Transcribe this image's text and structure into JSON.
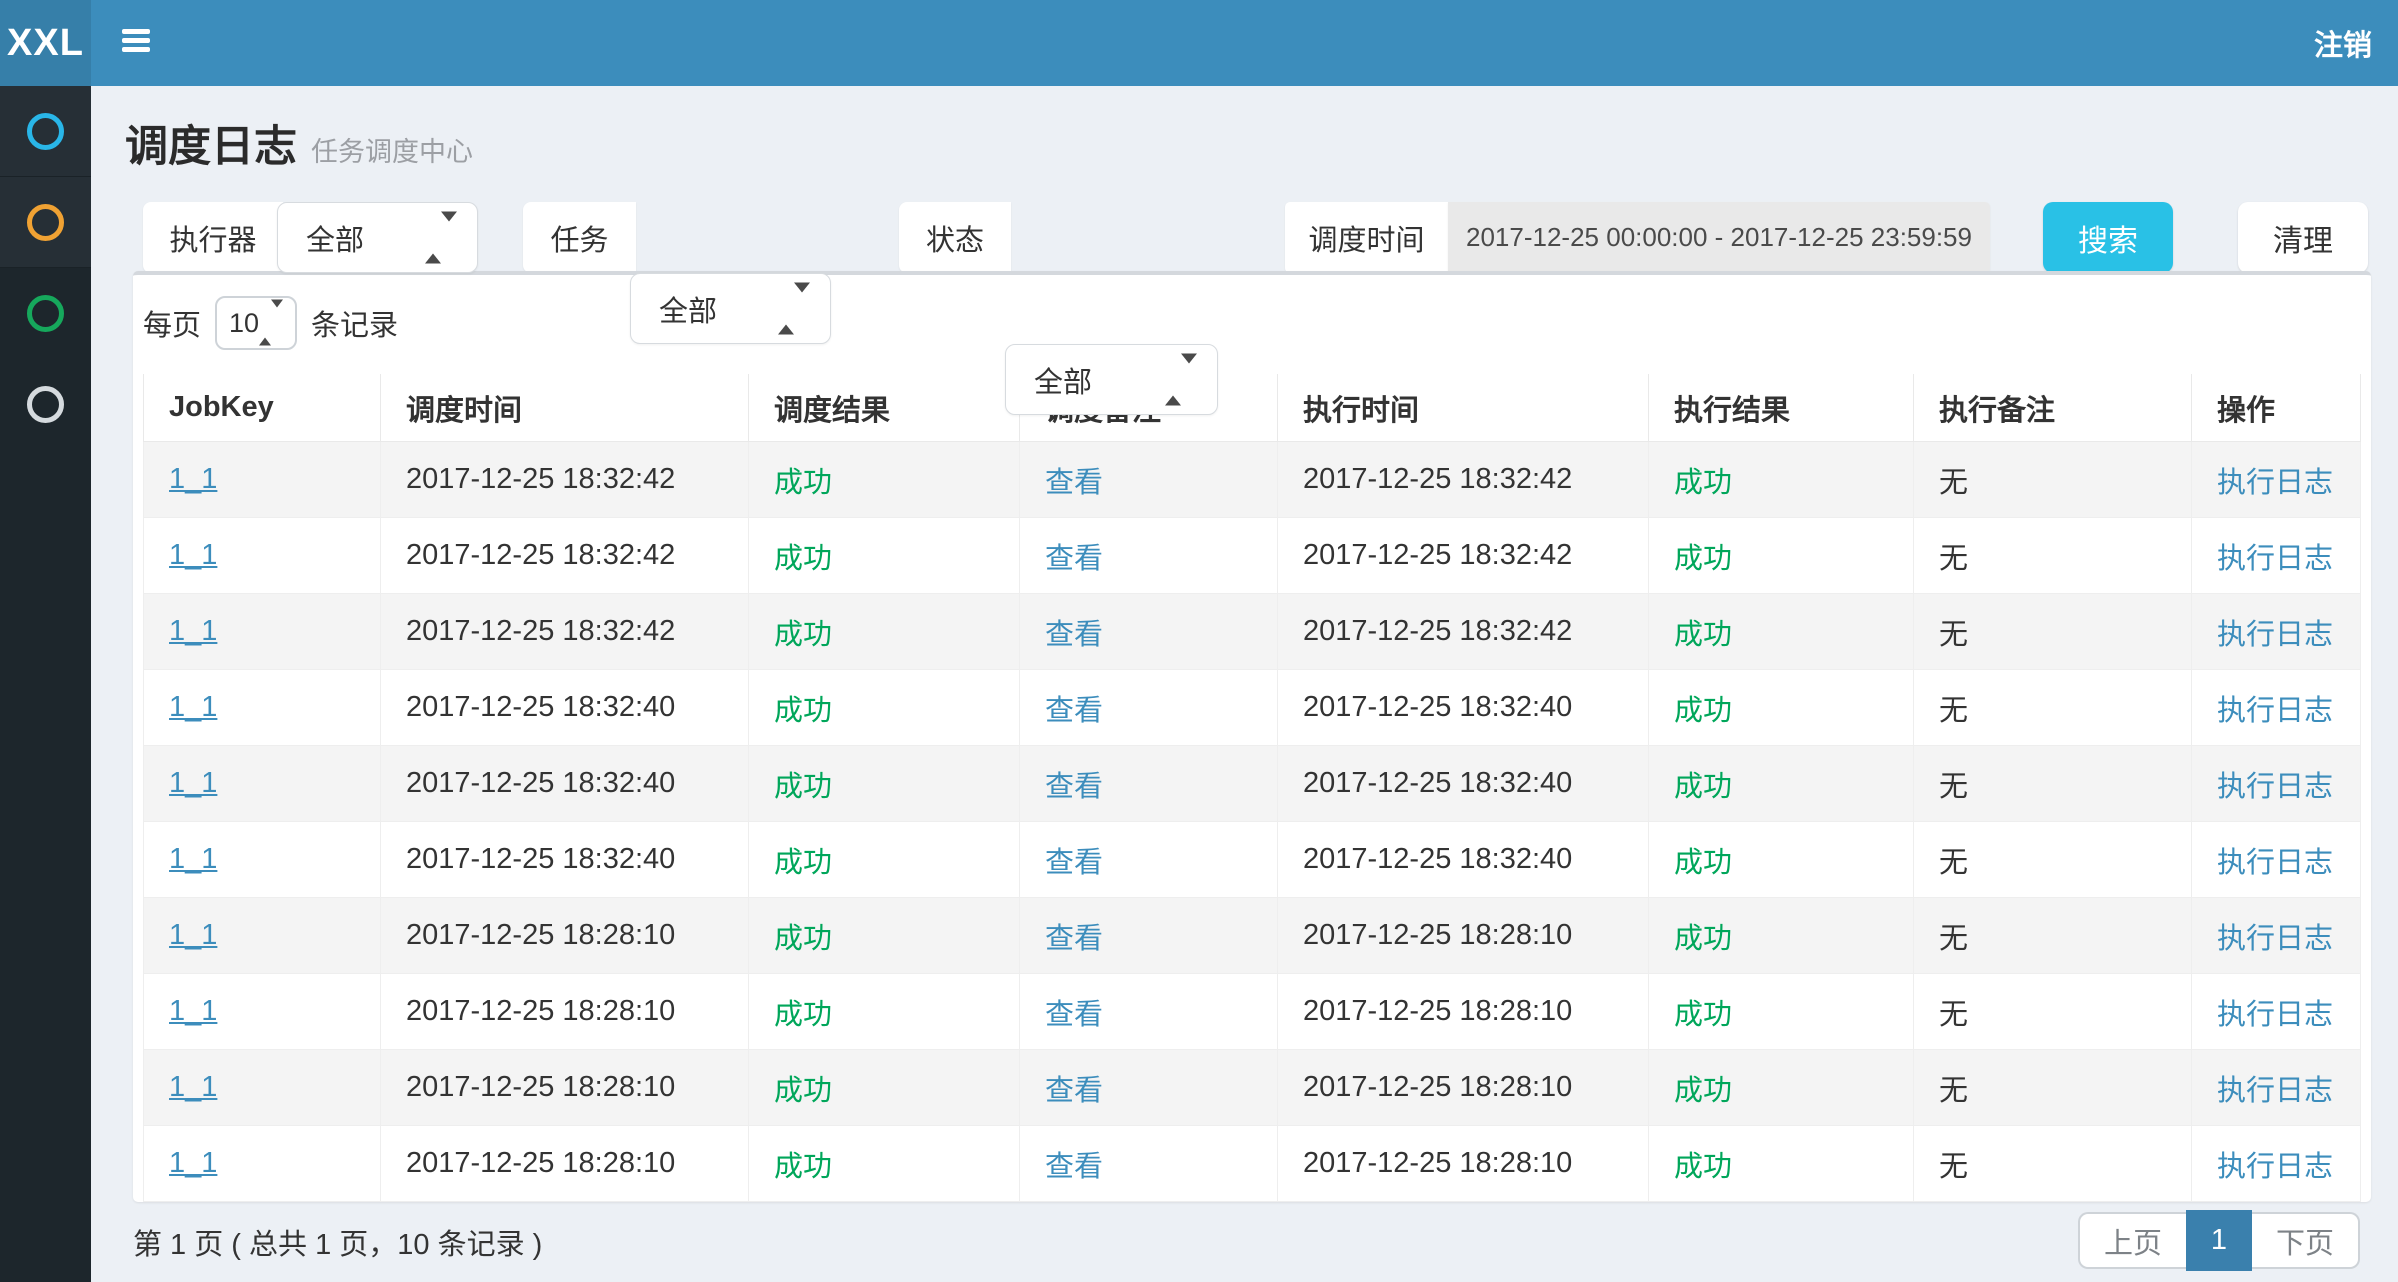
{
  "navbar": {
    "logo": "XXL",
    "logout": "注销"
  },
  "sidebar": {
    "items": [
      {
        "icon": "circle-icon",
        "color": "#29b6e8",
        "highlighted": true
      },
      {
        "icon": "circle-icon",
        "color": "#f0a233",
        "highlighted": true
      },
      {
        "icon": "circle-icon",
        "color": "#16a85c",
        "highlighted": false
      },
      {
        "icon": "circle-icon",
        "color": "#d5dade",
        "highlighted": false
      }
    ]
  },
  "page": {
    "title": "调度日志",
    "subtitle": "任务调度中心"
  },
  "filters": {
    "executor_label": "执行器",
    "executor_value": "全部",
    "job_label": "任务",
    "job_value": "全部",
    "status_label": "状态",
    "status_value": "全部",
    "time_label": "调度时间",
    "time_value": "2017-12-25 00:00:00 - 2017-12-25 23:59:59",
    "search_label": "搜索",
    "clear_label": "清理"
  },
  "per_page": {
    "prefix": "每页",
    "value": "10",
    "suffix": "条记录"
  },
  "table": {
    "columns": [
      "JobKey",
      "调度时间",
      "调度结果",
      "调度备注",
      "执行时间",
      "执行结果",
      "执行备注",
      "操作"
    ],
    "rows": [
      {
        "job_key": "1_1",
        "trigger_time": "2017-12-25 18:32:42",
        "trigger_result": "成功",
        "trigger_msg": "查看",
        "handle_time": "2017-12-25 18:32:42",
        "handle_result": "成功",
        "handle_msg": "无",
        "action": "执行日志"
      },
      {
        "job_key": "1_1",
        "trigger_time": "2017-12-25 18:32:42",
        "trigger_result": "成功",
        "trigger_msg": "查看",
        "handle_time": "2017-12-25 18:32:42",
        "handle_result": "成功",
        "handle_msg": "无",
        "action": "执行日志"
      },
      {
        "job_key": "1_1",
        "trigger_time": "2017-12-25 18:32:42",
        "trigger_result": "成功",
        "trigger_msg": "查看",
        "handle_time": "2017-12-25 18:32:42",
        "handle_result": "成功",
        "handle_msg": "无",
        "action": "执行日志"
      },
      {
        "job_key": "1_1",
        "trigger_time": "2017-12-25 18:32:40",
        "trigger_result": "成功",
        "trigger_msg": "查看",
        "handle_time": "2017-12-25 18:32:40",
        "handle_result": "成功",
        "handle_msg": "无",
        "action": "执行日志"
      },
      {
        "job_key": "1_1",
        "trigger_time": "2017-12-25 18:32:40",
        "trigger_result": "成功",
        "trigger_msg": "查看",
        "handle_time": "2017-12-25 18:32:40",
        "handle_result": "成功",
        "handle_msg": "无",
        "action": "执行日志"
      },
      {
        "job_key": "1_1",
        "trigger_time": "2017-12-25 18:32:40",
        "trigger_result": "成功",
        "trigger_msg": "查看",
        "handle_time": "2017-12-25 18:32:40",
        "handle_result": "成功",
        "handle_msg": "无",
        "action": "执行日志"
      },
      {
        "job_key": "1_1",
        "trigger_time": "2017-12-25 18:28:10",
        "trigger_result": "成功",
        "trigger_msg": "查看",
        "handle_time": "2017-12-25 18:28:10",
        "handle_result": "成功",
        "handle_msg": "无",
        "action": "执行日志"
      },
      {
        "job_key": "1_1",
        "trigger_time": "2017-12-25 18:28:10",
        "trigger_result": "成功",
        "trigger_msg": "查看",
        "handle_time": "2017-12-25 18:28:10",
        "handle_result": "成功",
        "handle_msg": "无",
        "action": "执行日志"
      },
      {
        "job_key": "1_1",
        "trigger_time": "2017-12-25 18:28:10",
        "trigger_result": "成功",
        "trigger_msg": "查看",
        "handle_time": "2017-12-25 18:28:10",
        "handle_result": "成功",
        "handle_msg": "无",
        "action": "执行日志"
      },
      {
        "job_key": "1_1",
        "trigger_time": "2017-12-25 18:28:10",
        "trigger_result": "成功",
        "trigger_msg": "查看",
        "handle_time": "2017-12-25 18:28:10",
        "handle_result": "成功",
        "handle_msg": "无",
        "action": "执行日志"
      }
    ]
  },
  "pagination": {
    "info": "第 1 页 ( 总共 1 页，10 条记录 )",
    "prev": "上页",
    "current": "1",
    "next": "下页"
  },
  "colors": {
    "navbar": "#3c8dbc",
    "logo_bg": "#367fa9",
    "sidebar": "#1d262c",
    "link": "#3c8dbc",
    "success": "#00a65a",
    "search_button": "#29c1e6",
    "time_input_bg": "#e9e9e9",
    "pagination_active": "#3a80ad",
    "row_stripe": "#f4f4f4"
  }
}
